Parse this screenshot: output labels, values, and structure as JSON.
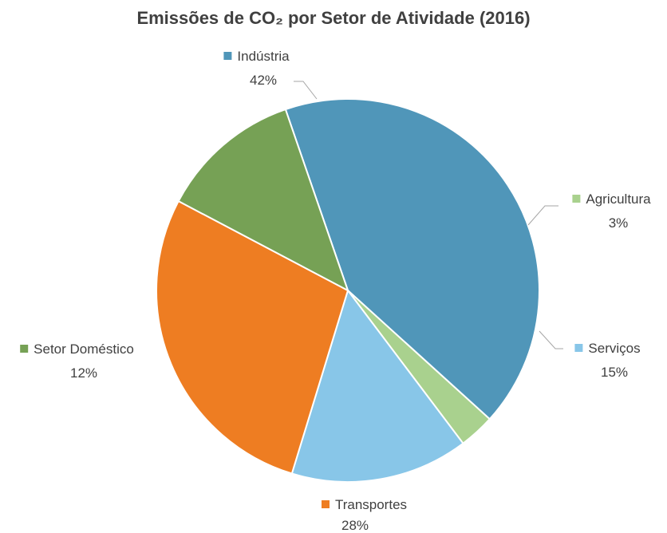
{
  "chart_data": {
    "type": "pie",
    "title": "Emissões de CO₂ por Setor de Atividade (2016)",
    "legend": "labels-on-slices",
    "slices": [
      {
        "name": "Indústria",
        "value": 42,
        "label": "42%",
        "color": "#5096B9"
      },
      {
        "name": "Agricultura",
        "value": 3,
        "label": "3%",
        "color": "#A9D18E"
      },
      {
        "name": "Serviços",
        "value": 15,
        "label": "15%",
        "color": "#88C6E8"
      },
      {
        "name": "Transportes",
        "value": 28,
        "label": "28%",
        "color": "#EE7D22"
      },
      {
        "name": "Setor Doméstico",
        "value": 12,
        "label": "12%",
        "color": "#76A155"
      }
    ]
  }
}
